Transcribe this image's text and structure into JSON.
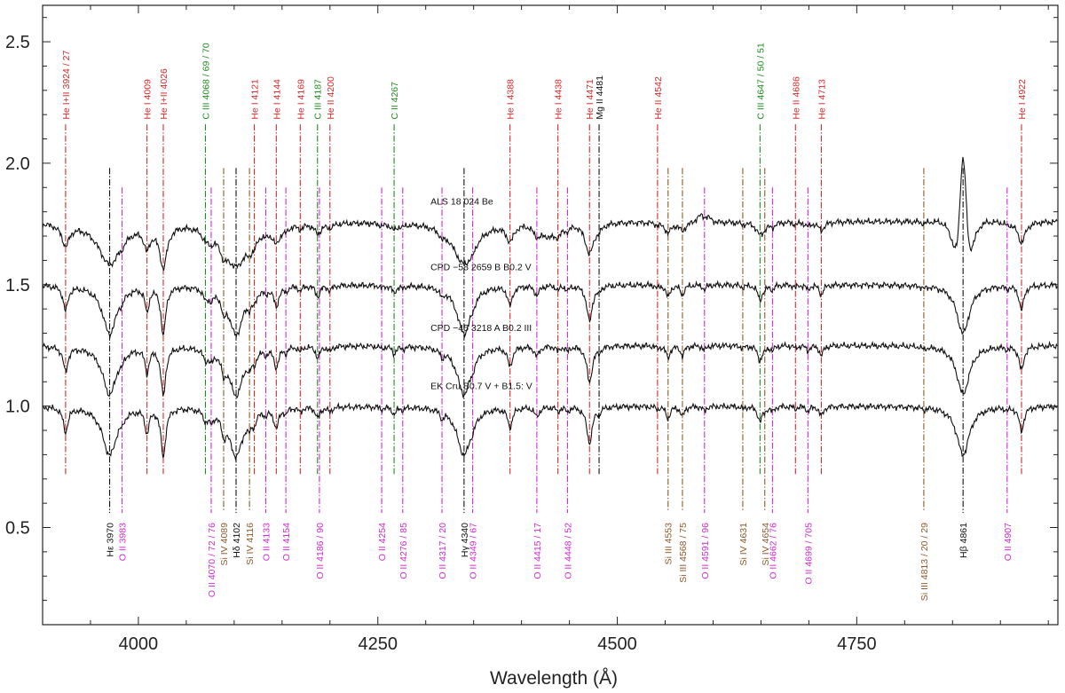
{
  "chart_data": {
    "type": "line",
    "title": "",
    "xlabel": "Wavelength (Å)",
    "ylabel": "",
    "xlim": [
      3900,
      4960
    ],
    "ylim": [
      0.1,
      2.65
    ],
    "x_ticks": [
      4000,
      4250,
      4500,
      4750
    ],
    "x_tick_labels": [
      "4000",
      "4250",
      "4500",
      "4750"
    ],
    "y_ticks": [
      0.5,
      1.0,
      1.5,
      2.0,
      2.5
    ],
    "y_tick_labels": [
      "0.5",
      "1.0",
      "1.5",
      "2.0",
      "2.5"
    ],
    "grid": false,
    "legend": "none",
    "colors": {
      "He": "#d42a2a",
      "C": "#1f8c1f",
      "O": "#d22ad2",
      "Si": "#8b5a2b",
      "H": "#111111",
      "Mg": "#111111",
      "spectrum": "#111111"
    },
    "series": [
      {
        "name": "ALS 18 024   Be",
        "label_x": 4305,
        "label_y": 1.83,
        "continuum": 1.76,
        "values_sampled": {
          "x": [
            3900,
            3970,
            4102,
            4340,
            4471,
            4861,
            4960
          ],
          "y": [
            1.76,
            1.54,
            1.53,
            1.58,
            1.6,
            2.04,
            1.76
          ]
        }
      },
      {
        "name": "CPD −58 2659 B   B0.2 V",
        "label_x": 4305,
        "label_y": 1.56,
        "continuum": 1.5,
        "values_sampled": {
          "x": [
            3900,
            3970,
            4102,
            4340,
            4471,
            4861,
            4960
          ],
          "y": [
            1.5,
            1.27,
            1.3,
            1.38,
            1.36,
            1.29,
            1.5
          ]
        }
      },
      {
        "name": "CPD −45 3218 A   B0.2 III",
        "label_x": 4305,
        "label_y": 1.31,
        "continuum": 1.25,
        "values_sampled": {
          "x": [
            3900,
            3970,
            4102,
            4340,
            4471,
            4861,
            4960
          ],
          "y": [
            1.25,
            0.99,
            1.04,
            1.07,
            1.1,
            1.04,
            1.25
          ]
        }
      },
      {
        "name": "EK Cru   B0.7 V + B1.5: V",
        "label_x": 4305,
        "label_y": 1.07,
        "continuum": 1.0,
        "values_sampled": {
          "x": [
            3900,
            3970,
            4102,
            4340,
            4471,
            4861,
            4960
          ],
          "y": [
            1.0,
            0.62,
            0.68,
            0.7,
            0.85,
            0.71,
            1.0
          ]
        }
      }
    ],
    "lines": [
      {
        "x": 3924,
        "element": "He",
        "label": "He I+II 3924 / 27",
        "pos": "top",
        "depth": 0.1,
        "width": 3,
        "series_mask": [
          1,
          1,
          1,
          1
        ]
      },
      {
        "x": 3970,
        "element": "H",
        "label": "Hε 3970",
        "pos": "bottom",
        "depth": 0.2,
        "width": 9,
        "series_mask": [
          1,
          1,
          1,
          1
        ]
      },
      {
        "x": 3983,
        "element": "O",
        "label": "O II 3983",
        "pos": "bottom",
        "depth": 0.02,
        "width": 2,
        "series_mask": [
          1,
          1,
          1,
          1
        ]
      },
      {
        "x": 4009,
        "element": "He",
        "label": "He I 4009",
        "pos": "top",
        "depth": 0.1,
        "width": 2.5,
        "series_mask": [
          1,
          1,
          1,
          1
        ]
      },
      {
        "x": 4026,
        "element": "He",
        "label": "He I+II 4026",
        "pos": "top",
        "depth": 0.2,
        "width": 3,
        "series_mask": [
          1,
          1,
          1,
          1
        ]
      },
      {
        "x": 4070,
        "element": "C",
        "label": "C III 4068 / 69 / 70",
        "pos": "top",
        "depth": 0.04,
        "width": 3,
        "series_mask": [
          1,
          1,
          1,
          1
        ]
      },
      {
        "x": 4076,
        "element": "O",
        "label": "O II 4070 / 72 / 76",
        "pos": "bottom",
        "depth": 0.04,
        "width": 3,
        "series_mask": [
          1,
          1,
          1,
          1
        ]
      },
      {
        "x": 4089,
        "element": "Si",
        "label": "Si IV 4089",
        "pos": "bottom",
        "depth": 0.07,
        "width": 2.5,
        "series_mask": [
          1,
          1,
          1,
          1
        ]
      },
      {
        "x": 4102,
        "element": "H",
        "label": "Hδ 4102",
        "pos": "bottom",
        "depth": 0.2,
        "width": 9,
        "series_mask": [
          1,
          1,
          1,
          1
        ]
      },
      {
        "x": 4116,
        "element": "Si",
        "label": "Si IV 4116",
        "pos": "bottom",
        "depth": 0.04,
        "width": 2.5,
        "series_mask": [
          1,
          1,
          1,
          1
        ]
      },
      {
        "x": 4121,
        "element": "He",
        "label": "He I 4121",
        "pos": "top",
        "depth": 0.04,
        "width": 2.5,
        "series_mask": [
          1,
          1,
          1,
          1
        ]
      },
      {
        "x": 4133,
        "element": "O",
        "label": "O II 4133",
        "pos": "bottom",
        "depth": 0.02,
        "width": 2,
        "series_mask": [
          1,
          1,
          1,
          1
        ]
      },
      {
        "x": 4144,
        "element": "He",
        "label": "He I 4144",
        "pos": "top",
        "depth": 0.08,
        "width": 3,
        "series_mask": [
          1,
          1,
          1,
          1
        ]
      },
      {
        "x": 4154,
        "element": "O",
        "label": "O II 4154",
        "pos": "bottom",
        "depth": 0.02,
        "width": 2,
        "series_mask": [
          1,
          1,
          1,
          1
        ]
      },
      {
        "x": 4169,
        "element": "He",
        "label": "He I 4169",
        "pos": "top",
        "depth": 0.02,
        "width": 2,
        "series_mask": [
          1,
          1,
          1,
          1
        ]
      },
      {
        "x": 4187,
        "element": "C",
        "label": "C III 4187",
        "pos": "top",
        "depth": 0.04,
        "width": 2.5,
        "series_mask": [
          1,
          1,
          1,
          1
        ]
      },
      {
        "x": 4189,
        "element": "O",
        "label": "O II 4186 / 90",
        "pos": "bottom",
        "depth": 0.01,
        "width": 2,
        "series_mask": [
          1,
          1,
          1,
          1
        ]
      },
      {
        "x": 4200,
        "element": "He",
        "label": "He II 4200",
        "pos": "top",
        "depth": 0.02,
        "width": 2.5,
        "series_mask": [
          1,
          1,
          1,
          1
        ]
      },
      {
        "x": 4254,
        "element": "O",
        "label": "O II 4254",
        "pos": "bottom",
        "depth": 0.01,
        "width": 2,
        "series_mask": [
          1,
          1,
          1,
          1
        ]
      },
      {
        "x": 4267,
        "element": "C",
        "label": "C II 4267",
        "pos": "top",
        "depth": 0.03,
        "width": 2.5,
        "series_mask": [
          1,
          1,
          1,
          1
        ]
      },
      {
        "x": 4276,
        "element": "O",
        "label": "O II 4276 / 85",
        "pos": "bottom",
        "depth": 0.01,
        "width": 2,
        "series_mask": [
          1,
          1,
          1,
          1
        ]
      },
      {
        "x": 4317,
        "element": "O",
        "label": "O II 4317 / 20",
        "pos": "bottom",
        "depth": 0.03,
        "width": 2,
        "series_mask": [
          1,
          1,
          1,
          1
        ]
      },
      {
        "x": 4340,
        "element": "H",
        "label": "Hγ 4340",
        "pos": "bottom",
        "depth": 0.2,
        "width": 9,
        "series_mask": [
          1,
          1,
          1,
          1
        ]
      },
      {
        "x": 4349,
        "element": "O",
        "label": "O II 4349 / 67",
        "pos": "bottom",
        "depth": 0.02,
        "width": 2,
        "series_mask": [
          1,
          1,
          1,
          1
        ]
      },
      {
        "x": 4388,
        "element": "He",
        "label": "He I 4388",
        "pos": "top",
        "depth": 0.08,
        "width": 3,
        "series_mask": [
          1,
          1,
          1,
          1
        ]
      },
      {
        "x": 4416,
        "element": "O",
        "label": "O II 4415 / 17",
        "pos": "bottom",
        "depth": 0.04,
        "width": 3,
        "series_mask": [
          1,
          1,
          1,
          1
        ]
      },
      {
        "x": 4438,
        "element": "He",
        "label": "He I 4438",
        "pos": "top",
        "depth": 0.02,
        "width": 2,
        "series_mask": [
          1,
          1,
          1,
          1
        ]
      },
      {
        "x": 4448,
        "element": "O",
        "label": "O II 4448 / 52",
        "pos": "bottom",
        "depth": 0.02,
        "width": 2,
        "series_mask": [
          1,
          1,
          1,
          1
        ]
      },
      {
        "x": 4471,
        "element": "He",
        "label": "He I 4471",
        "pos": "top",
        "depth": 0.15,
        "width": 3.5,
        "series_mask": [
          1,
          1,
          1,
          1
        ]
      },
      {
        "x": 4481,
        "element": "Mg",
        "label": "Mg II 4481",
        "pos": "top",
        "depth": 0.02,
        "width": 2,
        "series_mask": [
          1,
          1,
          1,
          1
        ]
      },
      {
        "x": 4542,
        "element": "He",
        "label": "He II 4542",
        "pos": "top",
        "depth": 0.01,
        "width": 2,
        "series_mask": [
          1,
          1,
          1,
          1
        ]
      },
      {
        "x": 4553,
        "element": "Si",
        "label": "Si III 4553",
        "pos": "bottom",
        "depth": 0.05,
        "width": 2.5,
        "series_mask": [
          1,
          1,
          1,
          1
        ]
      },
      {
        "x": 4568,
        "element": "Si",
        "label": "Si III 4568 / 75",
        "pos": "bottom",
        "depth": 0.04,
        "width": 2.5,
        "series_mask": [
          1,
          1,
          1,
          1
        ]
      },
      {
        "x": 4591,
        "element": "O",
        "label": "O II 4591 / 96",
        "pos": "bottom",
        "depth": 0.02,
        "width": 2,
        "series_mask": [
          1,
          1,
          1,
          1
        ]
      },
      {
        "x": 4631,
        "element": "Si",
        "label": "Si IV 4631",
        "pos": "bottom",
        "depth": 0.01,
        "width": 2,
        "series_mask": [
          1,
          1,
          1,
          1
        ]
      },
      {
        "x": 4649,
        "element": "C",
        "label": "C III 4647 / 50 / 51",
        "pos": "top",
        "depth": 0.06,
        "width": 3,
        "series_mask": [
          1,
          1,
          1,
          1
        ]
      },
      {
        "x": 4654,
        "element": "Si",
        "label": "Si IV 4654",
        "pos": "bottom",
        "depth": 0.01,
        "width": 2,
        "series_mask": [
          1,
          1,
          1,
          1
        ]
      },
      {
        "x": 4662,
        "element": "O",
        "label": "O II 4662 / 76",
        "pos": "bottom",
        "depth": 0.02,
        "width": 2,
        "series_mask": [
          1,
          1,
          1,
          1
        ]
      },
      {
        "x": 4686,
        "element": "He",
        "label": "He II 4686",
        "pos": "top",
        "depth": 0.01,
        "width": 2,
        "series_mask": [
          1,
          1,
          1,
          1
        ]
      },
      {
        "x": 4699,
        "element": "O",
        "label": "O II 4699 / 705",
        "pos": "bottom",
        "depth": 0.02,
        "width": 2,
        "series_mask": [
          1,
          1,
          1,
          1
        ]
      },
      {
        "x": 4713,
        "element": "He",
        "label": "He I 4713",
        "pos": "top",
        "depth": 0.04,
        "width": 2.5,
        "series_mask": [
          1,
          1,
          1,
          1
        ]
      },
      {
        "x": 4820,
        "element": "Si",
        "label": "Si III 4813 / 20 / 29",
        "pos": "bottom",
        "depth": 0.01,
        "width": 2,
        "series_mask": [
          1,
          1,
          1,
          1
        ]
      },
      {
        "x": 4861,
        "element": "H",
        "label": "Hβ 4861",
        "pos": "bottom",
        "depth": 0.2,
        "width": 8,
        "series_mask": [
          0,
          1,
          1,
          1
        ]
      },
      {
        "x": 4907,
        "element": "O",
        "label": "O II 4907",
        "pos": "bottom",
        "depth": 0.01,
        "width": 2,
        "series_mask": [
          1,
          1,
          1,
          1
        ]
      },
      {
        "x": 4922,
        "element": "He",
        "label": "He I 4922",
        "pos": "top",
        "depth": 0.1,
        "width": 3,
        "series_mask": [
          1,
          1,
          1,
          1
        ]
      }
    ]
  }
}
